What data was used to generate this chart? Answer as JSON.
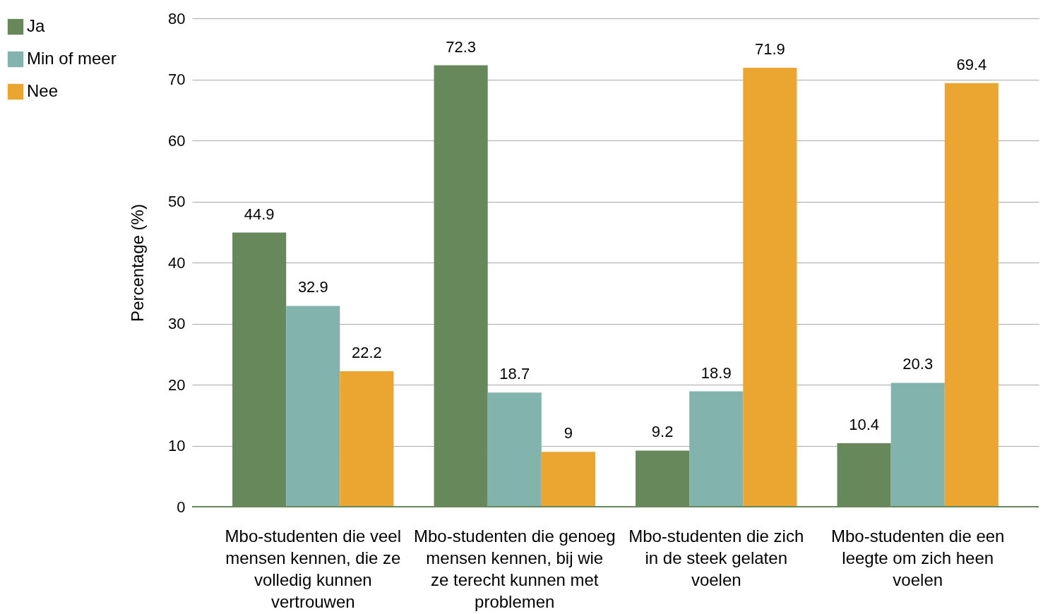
{
  "chart_data": {
    "type": "bar",
    "ylabel": "Percentage (%)",
    "categories": [
      "Mbo-studenten die veel mensen kennen, die ze volledig kunnen vertrouwen",
      "Mbo-studenten die genoeg mensen kennen, bij wie ze terecht kunnen met problemen",
      "Mbo-studenten die zich in de steek gelaten voelen",
      "Mbo-studenten die een leegte om zich heen voelen"
    ],
    "series": [
      {
        "name": "Ja",
        "color": "#66885a",
        "values": [
          44.9,
          72.3,
          9.2,
          10.4
        ]
      },
      {
        "name": "Min of meer",
        "color": "#82b3ac",
        "values": [
          32.9,
          18.7,
          18.9,
          20.3
        ]
      },
      {
        "name": "Nee",
        "color": "#eba531",
        "values": [
          22.2,
          9,
          71.9,
          69.4
        ]
      }
    ],
    "ylim": [
      0,
      80
    ],
    "yticks": [
      0,
      10,
      20,
      30,
      40,
      50,
      60,
      70,
      80
    ],
    "grid": "y",
    "legend": "left",
    "data_labels": true
  }
}
